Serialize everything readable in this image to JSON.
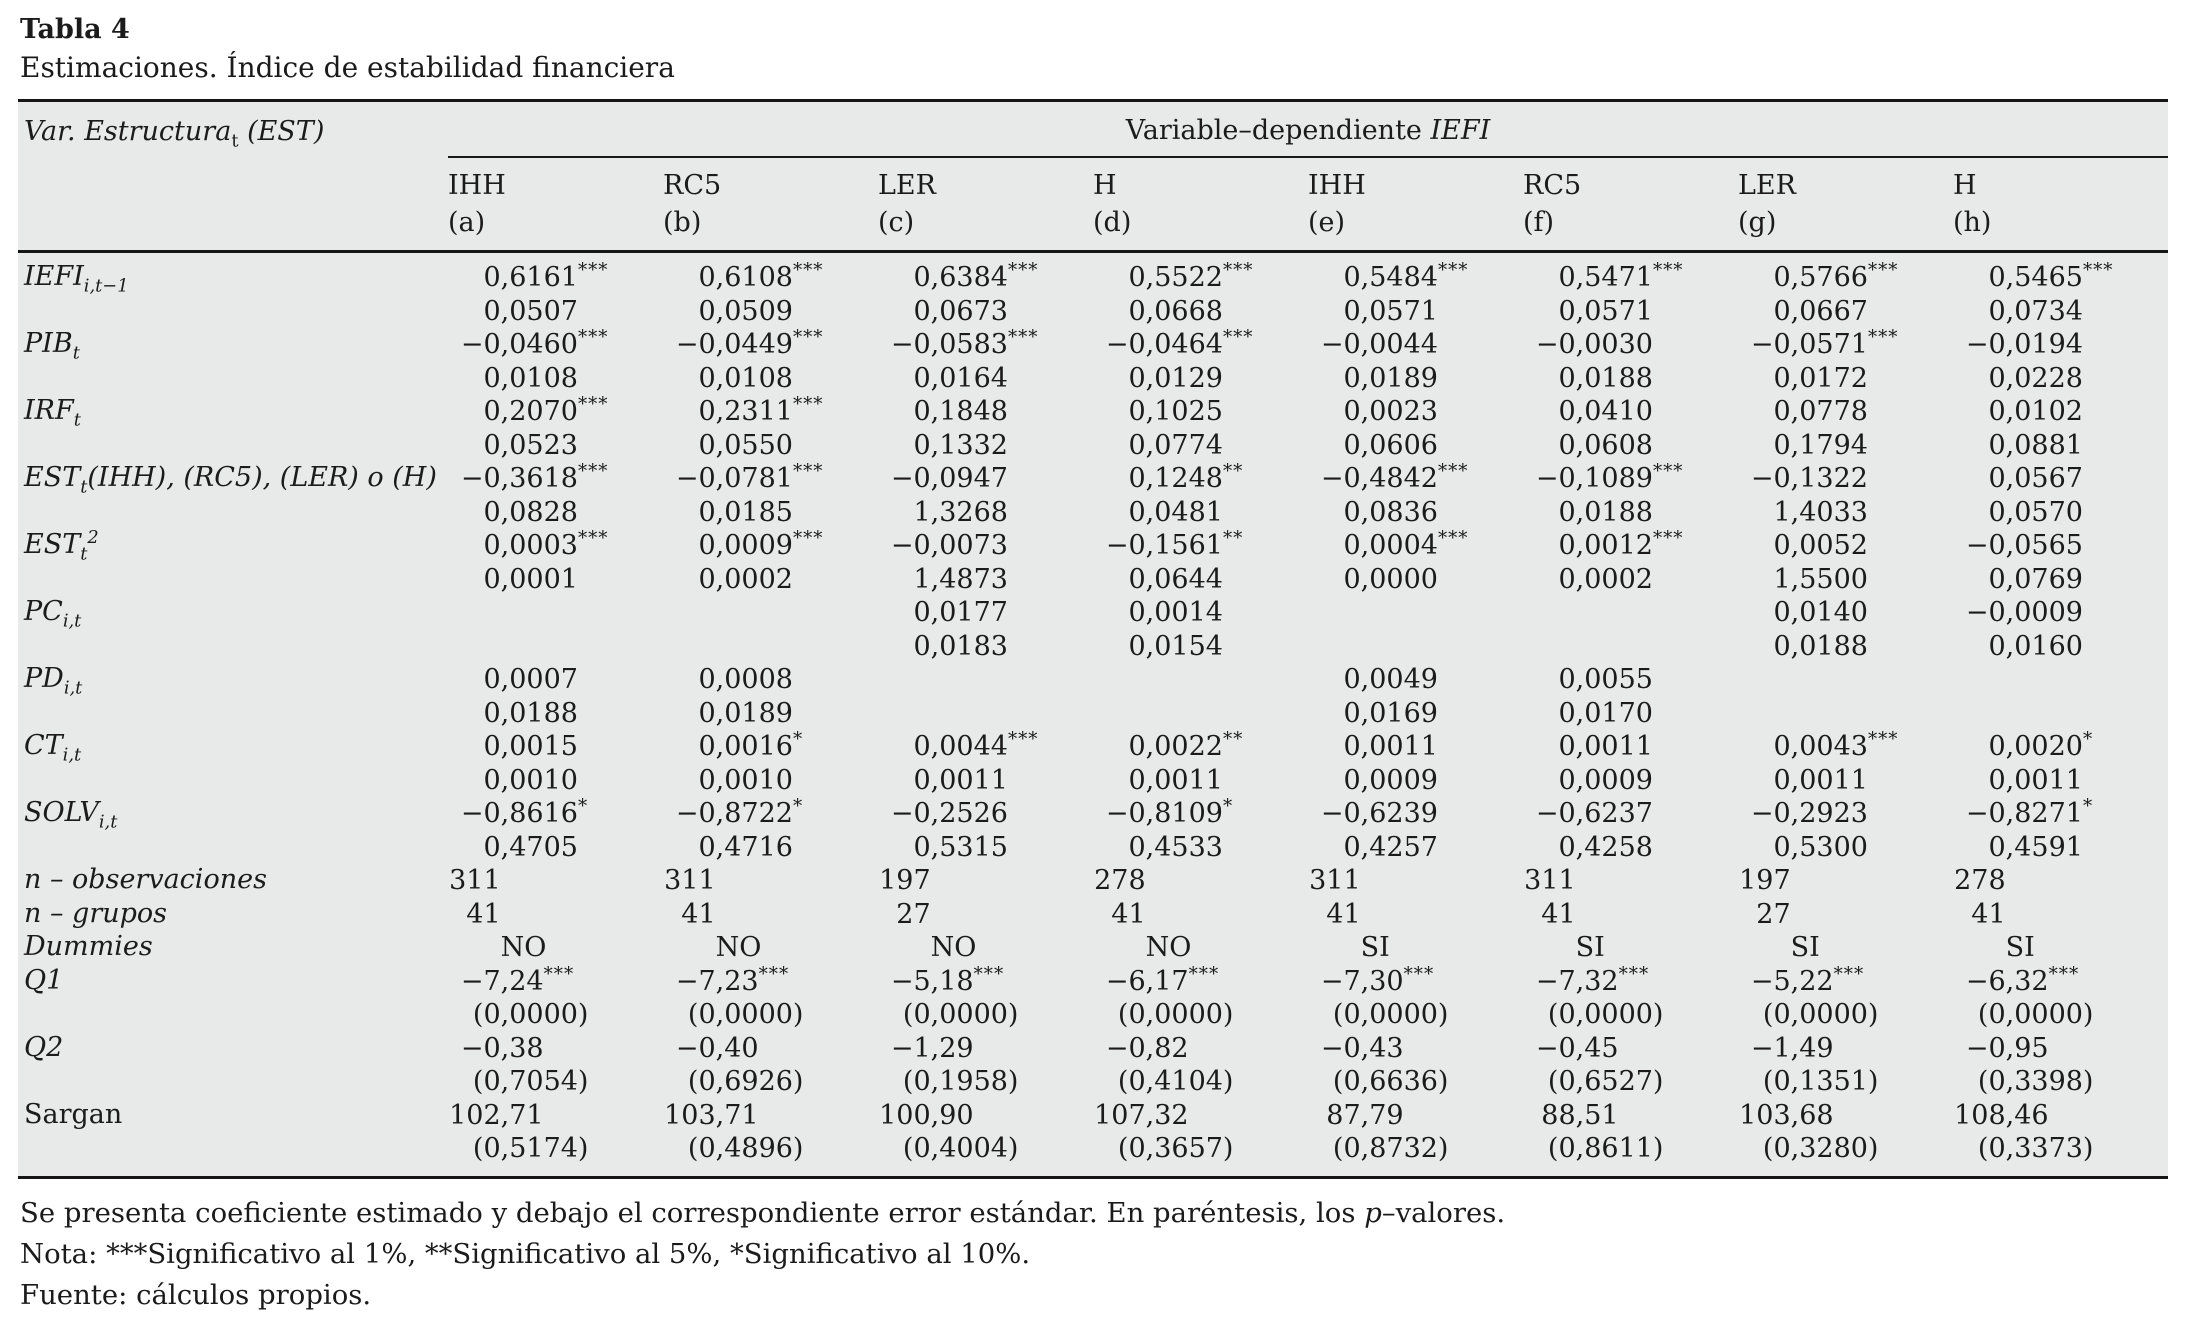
{
  "title": "Tabla 4",
  "subtitle": "Estimaciones. Índice de estabilidad financiera",
  "table": {
    "stub_header": {
      "pre": "Var. Estructura",
      "sub": "t",
      "post": " (EST)"
    },
    "span_header": {
      "plain": "Variable–dependiente ",
      "italic": "IEFI"
    },
    "columns": [
      {
        "measure": "IHH",
        "letter": "(a)"
      },
      {
        "measure": "RC5",
        "letter": "(b)"
      },
      {
        "measure": "LER",
        "letter": "(c)"
      },
      {
        "measure": "H",
        "letter": "(d)"
      },
      {
        "measure": "IHH",
        "letter": "(e)"
      },
      {
        "measure": "RC5",
        "letter": "(f)"
      },
      {
        "measure": "LER",
        "letter": "(g)"
      },
      {
        "measure": "H",
        "letter": "(h)"
      }
    ],
    "rows": [
      {
        "label": {
          "base": "IEFI",
          "sub": "i,t−1"
        },
        "coef": [
          "0,6161***",
          "0,6108***",
          "0,6384***",
          "0,5522***",
          "0,5484***",
          "0,5471***",
          "0,5766***",
          "0,5465***"
        ],
        "se": [
          "0,0507",
          "0,0509",
          "0,0673",
          "0,0668",
          "0,0571",
          "0,0571",
          "0,0667",
          "0,0734"
        ]
      },
      {
        "label": {
          "base": "PIB",
          "sub": "t"
        },
        "coef": [
          "−0,0460***",
          "−0,0449***",
          "−0,0583***",
          "−0,0464***",
          "−0,0044",
          "−0,0030",
          "−0,0571***",
          "−0,0194"
        ],
        "se": [
          "0,0108",
          "0,0108",
          "0,0164",
          "0,0129",
          "0,0189",
          "0,0188",
          "0,0172",
          "0,0228"
        ]
      },
      {
        "label": {
          "base": "IRF",
          "sub": "t"
        },
        "coef": [
          "0,2070***",
          "0,2311***",
          "0,1848",
          "0,1025",
          "0,0023",
          "0,0410",
          "0,0778",
          "0,0102"
        ],
        "se": [
          "0,0523",
          "0,0550",
          "0,1332",
          "0,0774",
          "0,0606",
          "0,0608",
          "0,1794",
          "0,0881"
        ]
      },
      {
        "label": {
          "base": "EST",
          "sub": "t",
          "post": "(IHH), (RC5), (LER) o (H)"
        },
        "coef": [
          "−0,3618***",
          "−0,0781***",
          "−0,0947",
          "0,1248**",
          "−0,4842***",
          "−0,1089***",
          "−0,1322",
          "0,0567"
        ],
        "se": [
          "0,0828",
          "0,0185",
          "1,3268",
          "0,0481",
          "0,0836",
          "0,0188",
          "1,4033",
          "0,0570"
        ]
      },
      {
        "label": {
          "base": "EST",
          "sub": "t",
          "sup": "2"
        },
        "coef": [
          "0,0003***",
          "0,0009***",
          "−0,0073",
          "−0,1561**",
          "0,0004***",
          "0,0012***",
          "0,0052",
          "−0,0565"
        ],
        "se": [
          "0,0001",
          "0,0002",
          "1,4873",
          "0,0644",
          "0,0000",
          "0,0002",
          "1,5500",
          "0,0769"
        ]
      },
      {
        "label": {
          "base": "PC",
          "sub": "i,t"
        },
        "coef": [
          "",
          "",
          "0,0177",
          "0,0014",
          "",
          "",
          "0,0140",
          "−0,0009"
        ],
        "se": [
          "",
          "",
          "0,0183",
          "0,0154",
          "",
          "",
          "0,0188",
          "0,0160"
        ]
      },
      {
        "label": {
          "base": "PD",
          "sub": "i,t"
        },
        "coef": [
          "0,0007",
          "0,0008",
          "",
          "",
          "0,0049",
          "0,0055",
          "",
          ""
        ],
        "se": [
          "0,0188",
          "0,0189",
          "",
          "",
          "0,0169",
          "0,0170",
          "",
          ""
        ]
      },
      {
        "label": {
          "base": "CT",
          "sub": "i,t"
        },
        "coef": [
          "0,0015",
          "0,0016*",
          "0,0044***",
          "0,0022**",
          "0,0011",
          "0,0011",
          "0,0043***",
          "0,0020*"
        ],
        "se": [
          "0,0010",
          "0,0010",
          "0,0011",
          "0,0011",
          "0,0009",
          "0,0009",
          "0,0011",
          "0,0011"
        ]
      },
      {
        "label": {
          "base": "SOLV",
          "sub": "i,t"
        },
        "coef": [
          "−0,8616*",
          "−0,8722*",
          "−0,2526",
          "−0,8109*",
          "−0,6239",
          "−0,6237",
          "−0,2923",
          "−0,8271*"
        ],
        "se": [
          "0,4705",
          "0,4716",
          "0,5315",
          "0,4533",
          "0,4257",
          "0,4258",
          "0,5300",
          "0,4591"
        ]
      },
      {
        "label": {
          "base": "n – observaciones"
        },
        "coef": [
          "311",
          "311",
          "197",
          "278",
          "311",
          "311",
          "197",
          "278"
        ]
      },
      {
        "label": {
          "base": "n – grupos"
        },
        "coef": [
          "41",
          "41",
          "27",
          "41",
          "41",
          "41",
          "27",
          "41"
        ]
      },
      {
        "label": {
          "base": "Dummies"
        },
        "coef": [
          "NO",
          "NO",
          "NO",
          "NO",
          "SI",
          "SI",
          "SI",
          "SI"
        ]
      },
      {
        "label": {
          "base": "Q1"
        },
        "coef": [
          "−7,24***",
          "−7,23***",
          "−5,18***",
          "−6,17***",
          "−7,30***",
          "−7,32***",
          "−5,22***",
          "−6,32***"
        ],
        "se": [
          "(0,0000)",
          "(0,0000)",
          "(0,0000)",
          "(0,0000)",
          "(0,0000)",
          "(0,0000)",
          "(0,0000)",
          "(0,0000)"
        ]
      },
      {
        "label": {
          "base": "Q2"
        },
        "coef": [
          "−0,38",
          "−0,40",
          "−1,29",
          "−0,82",
          "−0,43",
          "−0,45",
          "−1,49",
          "−0,95"
        ],
        "se": [
          "(0,7054)",
          "(0,6926)",
          "(0,1958)",
          "(0,4104)",
          "(0,6636)",
          "(0,6527)",
          "(0,1351)",
          "(0,3398)"
        ]
      },
      {
        "label": {
          "base": "Sargan",
          "roman": true
        },
        "coef": [
          "102,71",
          "103,71",
          "100,90",
          "107,32",
          "87,79",
          "88,51",
          "103,68",
          "108,46"
        ],
        "se": [
          "(0,5174)",
          "(0,4896)",
          "(0,4004)",
          "(0,3657)",
          "(0,8732)",
          "(0,8611)",
          "(0,3280)",
          "(0,3373)"
        ]
      }
    ]
  },
  "notes": [
    [
      {
        "t": "Se presenta coeficiente estimado y debajo el correspondiente error estándar. En paréntesis, los "
      },
      {
        "t": "p",
        "i": true
      },
      {
        "t": "–valores."
      }
    ],
    [
      {
        "t": "Nota: ***Significativo al 1%, **Significativo al 5%, *Significativo al 10%."
      }
    ],
    [
      {
        "t": "Fuente: cálculos propios."
      }
    ]
  ]
}
